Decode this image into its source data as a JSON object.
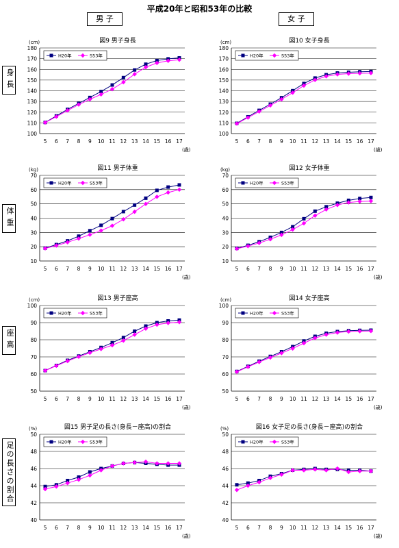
{
  "page": {
    "title": "平成20年と昭和53年の比較",
    "col_headers": [
      "男 子",
      "女 子"
    ],
    "row_labels": [
      "身長",
      "体重",
      "座高",
      "足の長さの割合"
    ]
  },
  "chart_data": [
    {
      "type": "line",
      "title": "図9 男子身長",
      "unit": "(cm)",
      "xunit": "(歳)",
      "x": [
        5,
        6,
        7,
        8,
        9,
        10,
        11,
        12,
        13,
        14,
        15,
        16,
        17
      ],
      "ylim": [
        100,
        180
      ],
      "ystep": 10,
      "grid": true,
      "legend_position": "top-left",
      "series": [
        {
          "name": "H20年",
          "color": "#000080",
          "marker": "square",
          "values": [
            110.4,
            116.5,
            122.6,
            128.2,
            133.7,
            139.3,
            145.4,
            152.3,
            159.4,
            164.8,
            168.2,
            169.8,
            170.7
          ]
        },
        {
          "name": "S53年",
          "color": "#ff00ff",
          "marker": "diamond",
          "values": [
            110.3,
            115.8,
            121.6,
            127.1,
            132.0,
            136.6,
            141.5,
            148.0,
            155.5,
            162.0,
            166.0,
            168.0,
            169.0
          ]
        }
      ]
    },
    {
      "type": "line",
      "title": "図10 女子身長",
      "unit": "(cm)",
      "xunit": "(歳)",
      "x": [
        5,
        6,
        7,
        8,
        9,
        10,
        11,
        12,
        13,
        14,
        15,
        16,
        17
      ],
      "ylim": [
        100,
        180
      ],
      "ystep": 10,
      "grid": true,
      "legend_position": "top-left",
      "series": [
        {
          "name": "H20年",
          "color": "#000080",
          "marker": "square",
          "values": [
            109.6,
            115.7,
            121.7,
            127.5,
            133.5,
            140.1,
            146.8,
            151.9,
            155.0,
            156.6,
            157.3,
            157.8,
            158.0
          ]
        },
        {
          "name": "S53年",
          "color": "#ff00ff",
          "marker": "diamond",
          "values": [
            109.3,
            114.9,
            120.6,
            126.3,
            132.0,
            138.2,
            144.8,
            150.1,
            153.5,
            155.3,
            156.0,
            156.3,
            156.5
          ]
        }
      ]
    },
    {
      "type": "line",
      "title": "図11 男子体重",
      "unit": "(kg)",
      "xunit": "(歳)",
      "x": [
        5,
        6,
        7,
        8,
        9,
        10,
        11,
        12,
        13,
        14,
        15,
        16,
        17
      ],
      "ylim": [
        10,
        70
      ],
      "ystep": 10,
      "grid": true,
      "legend_position": "top-left",
      "series": [
        {
          "name": "H20年",
          "color": "#000080",
          "marker": "square",
          "values": [
            19.0,
            21.5,
            24.1,
            27.4,
            31.2,
            35.0,
            39.7,
            44.6,
            49.2,
            54.0,
            59.5,
            61.8,
            63.3
          ]
        },
        {
          "name": "S53年",
          "color": "#ff00ff",
          "marker": "diamond",
          "values": [
            18.8,
            20.8,
            23.1,
            25.7,
            28.4,
            31.3,
            34.7,
            39.2,
            44.5,
            50.0,
            55.0,
            58.0,
            60.0
          ]
        }
      ]
    },
    {
      "type": "line",
      "title": "図12 女子体重",
      "unit": "(kg)",
      "xunit": "(歳)",
      "x": [
        5,
        6,
        7,
        8,
        9,
        10,
        11,
        12,
        13,
        14,
        15,
        16,
        17
      ],
      "ylim": [
        10,
        70
      ],
      "ystep": 10,
      "grid": true,
      "legend_position": "top-left",
      "series": [
        {
          "name": "H20年",
          "color": "#000080",
          "marker": "square",
          "values": [
            18.8,
            21.0,
            23.5,
            26.6,
            30.0,
            34.0,
            39.6,
            44.9,
            48.0,
            50.5,
            52.5,
            53.8,
            54.5
          ]
        },
        {
          "name": "S53年",
          "color": "#ff00ff",
          "marker": "diamond",
          "values": [
            18.6,
            20.4,
            22.6,
            25.2,
            28.3,
            32.0,
            36.4,
            41.8,
            46.1,
            49.2,
            51.0,
            51.7,
            52.0
          ]
        }
      ]
    },
    {
      "type": "line",
      "title": "図13 男子座高",
      "unit": "(cm)",
      "xunit": "(歳)",
      "x": [
        5,
        6,
        7,
        8,
        9,
        10,
        11,
        12,
        13,
        14,
        15,
        16,
        17
      ],
      "ylim": [
        50,
        100
      ],
      "ystep": 10,
      "grid": true,
      "legend_position": "top-left",
      "series": [
        {
          "name": "H20年",
          "color": "#000080",
          "marker": "square",
          "values": [
            62.0,
            65.0,
            68.0,
            70.5,
            73.0,
            75.5,
            78.3,
            81.3,
            85.0,
            88.0,
            90.0,
            91.0,
            91.5
          ]
        },
        {
          "name": "S53年",
          "color": "#ff00ff",
          "marker": "diamond",
          "values": [
            62.0,
            64.8,
            67.6,
            70.1,
            72.4,
            74.6,
            76.8,
            79.5,
            83.0,
            86.5,
            88.8,
            89.8,
            90.3
          ]
        }
      ]
    },
    {
      "type": "line",
      "title": "図14 女子座高",
      "unit": "(cm)",
      "xunit": "(歳)",
      "x": [
        5,
        6,
        7,
        8,
        9,
        10,
        11,
        12,
        13,
        14,
        15,
        16,
        17
      ],
      "ylim": [
        50,
        100
      ],
      "ystep": 10,
      "grid": true,
      "legend_position": "top-left",
      "series": [
        {
          "name": "H20年",
          "color": "#000080",
          "marker": "square",
          "values": [
            61.5,
            64.5,
            67.5,
            70.3,
            73.0,
            76.0,
            79.3,
            82.0,
            83.8,
            84.8,
            85.3,
            85.5,
            85.6
          ]
        },
        {
          "name": "S53年",
          "color": "#ff00ff",
          "marker": "diamond",
          "values": [
            61.3,
            64.2,
            67.0,
            69.6,
            72.2,
            74.9,
            78.0,
            81.0,
            83.0,
            84.2,
            84.8,
            85.0,
            85.1
          ]
        }
      ]
    },
    {
      "type": "line",
      "title": "図15 男子足の長さ(身長－座高)の割合",
      "unit": "(%)",
      "xunit": "(歳)",
      "x": [
        5,
        6,
        7,
        8,
        9,
        10,
        11,
        12,
        13,
        14,
        15,
        16,
        17
      ],
      "ylim": [
        40,
        50
      ],
      "ystep": 2,
      "grid": true,
      "legend_position": "top-left",
      "series": [
        {
          "name": "H20年",
          "color": "#000080",
          "marker": "square",
          "values": [
            43.9,
            44.1,
            44.6,
            45.0,
            45.6,
            46.0,
            46.3,
            46.6,
            46.7,
            46.6,
            46.5,
            46.4,
            46.4
          ]
        },
        {
          "name": "S53年",
          "color": "#ff00ff",
          "marker": "diamond",
          "values": [
            43.6,
            43.9,
            44.3,
            44.7,
            45.2,
            45.8,
            46.3,
            46.6,
            46.7,
            46.8,
            46.6,
            46.6,
            46.6
          ]
        }
      ]
    },
    {
      "type": "line",
      "title": "図16 女子足の長さ(身長－座高)の割合",
      "unit": "(%)",
      "xunit": "(歳)",
      "x": [
        5,
        6,
        7,
        8,
        9,
        10,
        11,
        12,
        13,
        14,
        15,
        16,
        17
      ],
      "ylim": [
        40,
        50
      ],
      "ystep": 2,
      "grid": true,
      "legend_position": "top-left",
      "series": [
        {
          "name": "H20年",
          "color": "#000080",
          "marker": "square",
          "values": [
            44.1,
            44.3,
            44.6,
            45.1,
            45.4,
            45.8,
            45.9,
            46.0,
            45.9,
            45.9,
            45.8,
            45.8,
            45.7
          ]
        },
        {
          "name": "S53年",
          "color": "#ff00ff",
          "marker": "diamond",
          "values": [
            43.5,
            44.0,
            44.4,
            44.9,
            45.3,
            45.8,
            45.8,
            45.9,
            45.8,
            46.0,
            45.6,
            45.7,
            45.7
          ]
        }
      ]
    }
  ]
}
